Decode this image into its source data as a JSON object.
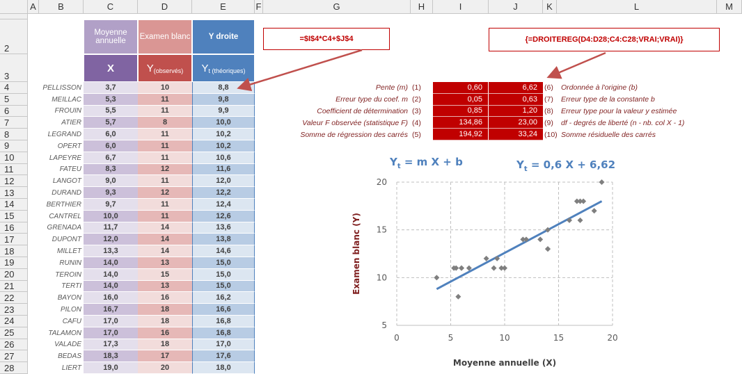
{
  "column_headers": [
    "A",
    "B",
    "C",
    "D",
    "E",
    "F",
    "G",
    "H",
    "I",
    "J",
    "K",
    "L",
    "M"
  ],
  "row_numbers": [
    "2",
    "3",
    "4",
    "5",
    "6",
    "7",
    "8",
    "9",
    "10",
    "11",
    "12",
    "13",
    "14",
    "15",
    "16",
    "17",
    "18",
    "19",
    "20",
    "21",
    "22",
    "23",
    "24",
    "25",
    "26",
    "27",
    "28"
  ],
  "headers": {
    "x_title": "Moyenne annuelle",
    "y_title": "Examen blanc",
    "yt_title": "Y droite",
    "x_sym": "X",
    "y_sym": {
      "main": "Y",
      "sub": "(observés)"
    },
    "yt_sym": {
      "main": "Y",
      "sub": "t (théoriques)"
    }
  },
  "table": {
    "rows": [
      [
        "PELLISSON",
        "3,7",
        "10",
        "8,8"
      ],
      [
        "MEILLAC",
        "5,3",
        "11",
        "9,8"
      ],
      [
        "FROUIN",
        "5,5",
        "11",
        "9,9"
      ],
      [
        "ATIER",
        "5,7",
        "8",
        "10,0"
      ],
      [
        "LEGRAND",
        "6,0",
        "11",
        "10,2"
      ],
      [
        "OPERT",
        "6,0",
        "11",
        "10,2"
      ],
      [
        "LAPEYRE",
        "6,7",
        "11",
        "10,6"
      ],
      [
        "FATEU",
        "8,3",
        "12",
        "11,6"
      ],
      [
        "LANGOT",
        "9,0",
        "11",
        "12,0"
      ],
      [
        "DURAND",
        "9,3",
        "12",
        "12,2"
      ],
      [
        "BERTHIER",
        "9,7",
        "11",
        "12,4"
      ],
      [
        "CANTREL",
        "10,0",
        "11",
        "12,6"
      ],
      [
        "GRENADA",
        "11,7",
        "14",
        "13,6"
      ],
      [
        "DUPONT",
        "12,0",
        "14",
        "13,8"
      ],
      [
        "MILLET",
        "13,3",
        "14",
        "14,6"
      ],
      [
        "RUNIN",
        "14,0",
        "13",
        "15,0"
      ],
      [
        "TEROIN",
        "14,0",
        "15",
        "15,0"
      ],
      [
        "TERTI",
        "14,0",
        "13",
        "15,0"
      ],
      [
        "BAYON",
        "16,0",
        "16",
        "16,2"
      ],
      [
        "PILON",
        "16,7",
        "18",
        "16,6"
      ],
      [
        "CAFU",
        "17,0",
        "18",
        "16,8"
      ],
      [
        "TALAMON",
        "17,0",
        "16",
        "16,8"
      ],
      [
        "VALADE",
        "17,3",
        "18",
        "17,0"
      ],
      [
        "BEDAS",
        "18,3",
        "17",
        "17,6"
      ],
      [
        "LIERT",
        "19,0",
        "20",
        "18,0"
      ]
    ]
  },
  "formulas": [
    "=$I$4*C4+$J$4",
    "{=DROITEREG(D4:D28;C4:C28;VRAI;VRAI)}"
  ],
  "stats": {
    "rows": [
      [
        "Pente (m)",
        "(1)",
        "0,60",
        "6,62",
        "(6)",
        "Ordonnée à l'origine (b)"
      ],
      [
        "Erreur type du coef. m",
        "(2)",
        "0,05",
        "0,63",
        "(7)",
        "Erreur type de la constante b"
      ],
      [
        "Coefficient de détermination",
        "(3)",
        "0,85",
        "1,20",
        "(8)",
        "Erreur type pour la valeur y estimée"
      ],
      [
        "Valeur F observée (statistique F)",
        "(4)",
        "134,86",
        "23,00",
        "(9)",
        "df - degrés de liberté (n - nb. col X - 1)"
      ],
      [
        "Somme de régression des carrés",
        "(5)",
        "194,92",
        "33,24",
        "(10)",
        "Somme résiduelle des carrés"
      ]
    ]
  },
  "chart_data": {
    "type": "scatter",
    "annotations": [
      {
        "main": "Y",
        "sub": "t",
        "rest": " = m X + b"
      },
      {
        "main": "Y",
        "sub": "t",
        "rest": " = 0,6 X + 6,62"
      }
    ],
    "x_label": "Moyenne annuelle (X)",
    "y_label": "Examen blanc (Y)",
    "x": [
      3.7,
      5.3,
      5.5,
      5.7,
      6.0,
      6.0,
      6.7,
      8.3,
      9.0,
      9.3,
      9.7,
      10.0,
      11.7,
      12.0,
      13.3,
      14.0,
      14.0,
      14.0,
      16.0,
      16.7,
      17.0,
      17.0,
      17.3,
      18.3,
      19.0
    ],
    "values": [
      10,
      11,
      11,
      8,
      11,
      11,
      11,
      12,
      11,
      12,
      11,
      11,
      14,
      14,
      14,
      13,
      15,
      13,
      16,
      18,
      18,
      16,
      18,
      17,
      20
    ],
    "color": "#7f7f7f",
    "trendline": {
      "x": [
        3.7,
        19.0
      ],
      "values": [
        8.8,
        18.0
      ],
      "color": "#4f81bd"
    },
    "xlim": [
      0,
      20
    ],
    "xticks": [
      0,
      5,
      10,
      15,
      20
    ],
    "ylim": [
      5,
      20
    ],
    "yticks": [
      5,
      10,
      15,
      20
    ],
    "grid": true
  }
}
